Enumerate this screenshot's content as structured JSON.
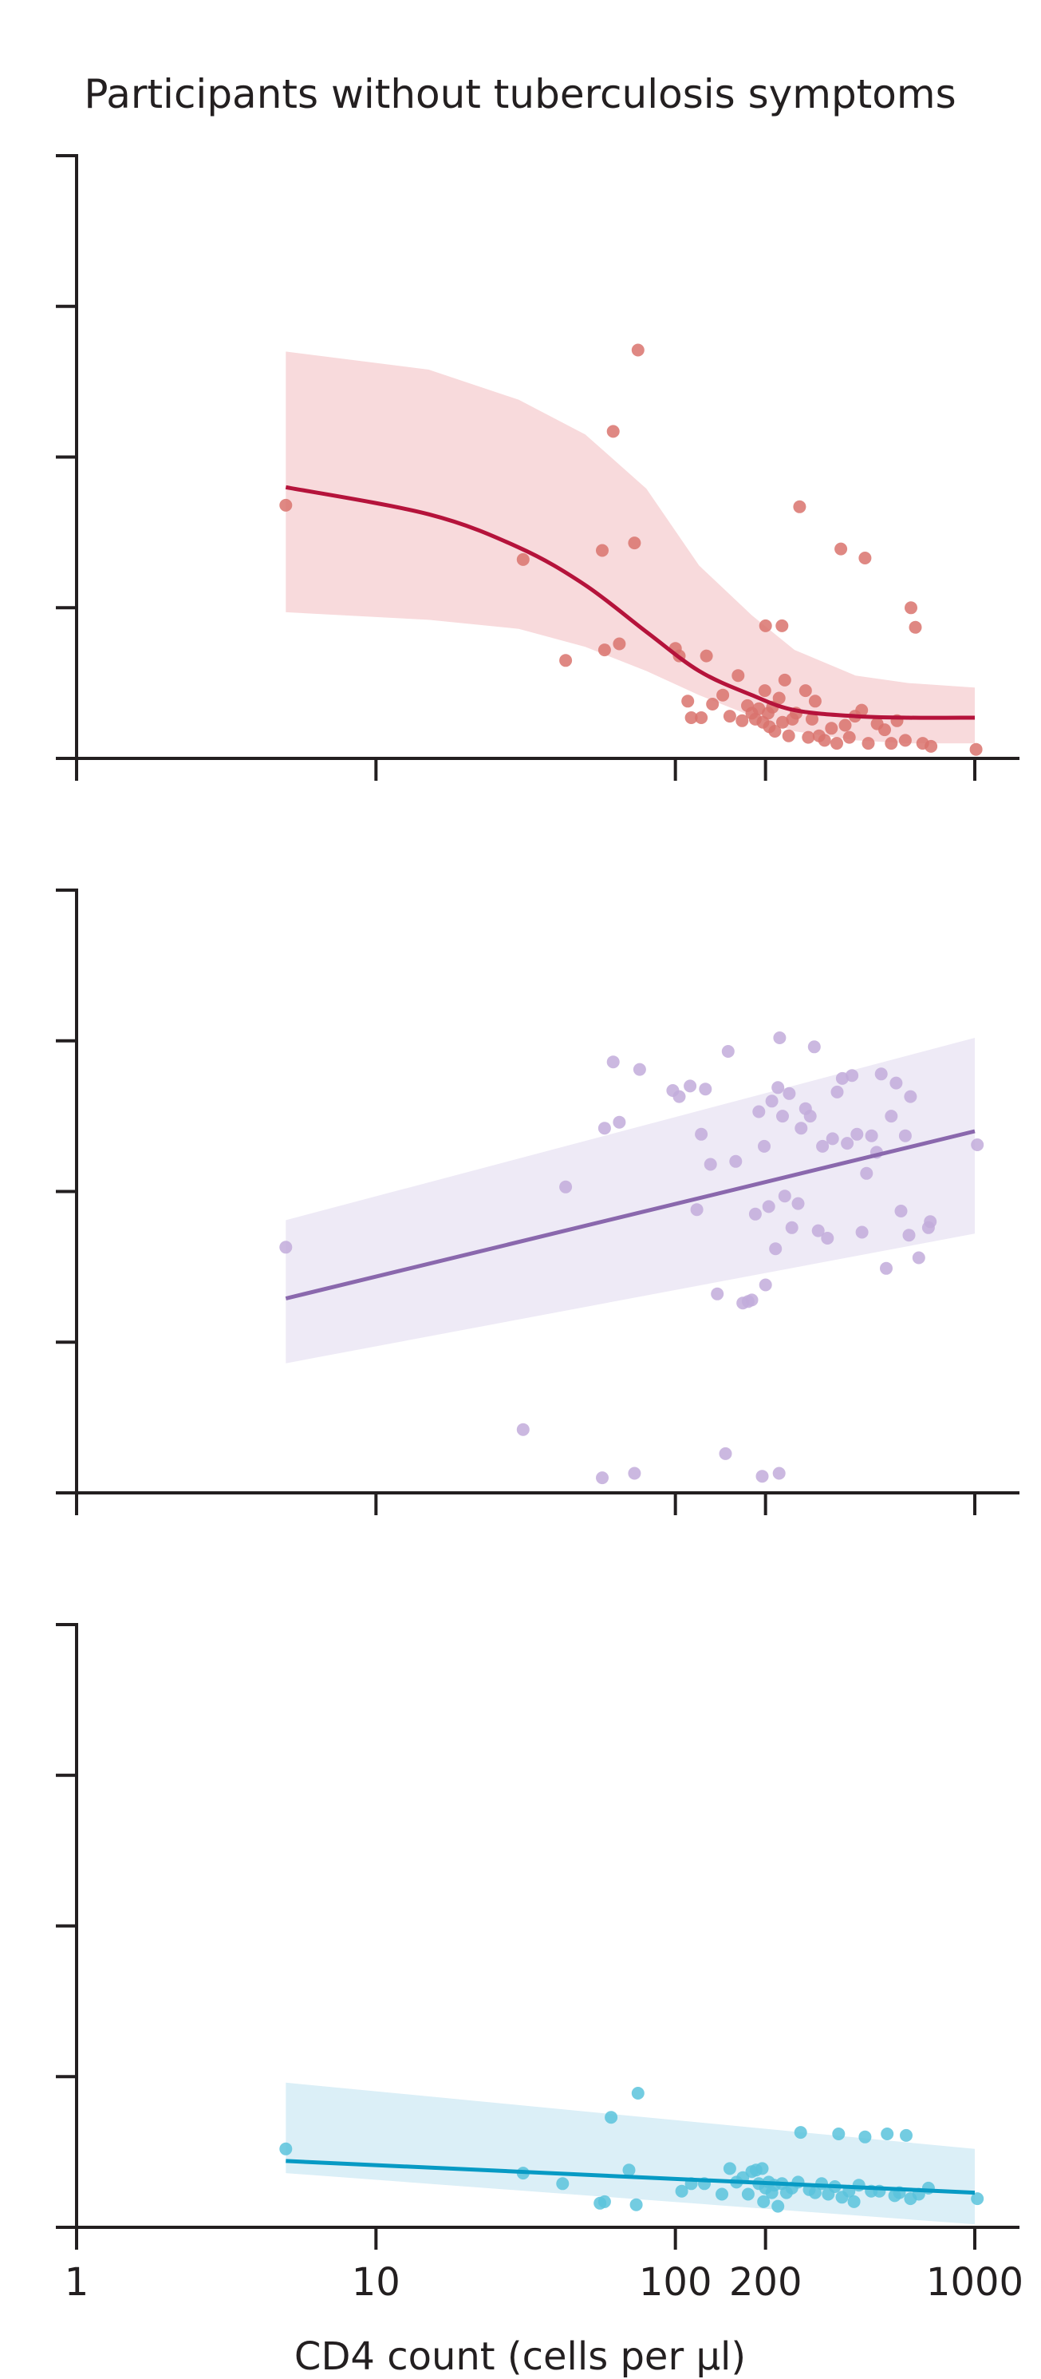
{
  "figure": {
    "title": "Participants without tuberculosis symptoms",
    "xlabel": "CD4 count (cells per µl)",
    "x_scale": "log",
    "x_ticks": [
      1,
      10,
      100,
      200,
      1000
    ],
    "x_tick_labels": [
      "1",
      "10",
      "100",
      "200",
      "1000"
    ]
  },
  "chart_data": [
    {
      "type": "scatter",
      "panel": "top",
      "x_scale": "log",
      "xlim": [
        1,
        1000
      ],
      "ylim": [
        0,
        4
      ],
      "y_ticks": [
        0,
        1,
        2,
        3,
        4
      ],
      "grid": false,
      "colors": {
        "points": "#d9736d",
        "line": "#b5133b",
        "band": "#f8dadc"
      },
      "points": [
        {
          "x": 5,
          "y": 1.68
        },
        {
          "x": 31,
          "y": 1.32
        },
        {
          "x": 43,
          "y": 0.65
        },
        {
          "x": 57,
          "y": 1.38
        },
        {
          "x": 62,
          "y": 2.17
        },
        {
          "x": 58,
          "y": 0.72
        },
        {
          "x": 65,
          "y": 0.76
        },
        {
          "x": 73,
          "y": 1.43
        },
        {
          "x": 75,
          "y": 2.71
        },
        {
          "x": 100,
          "y": 0.73
        },
        {
          "x": 103,
          "y": 0.68
        },
        {
          "x": 110,
          "y": 0.38
        },
        {
          "x": 113,
          "y": 0.27
        },
        {
          "x": 122,
          "y": 0.27
        },
        {
          "x": 127,
          "y": 0.68
        },
        {
          "x": 133,
          "y": 0.36
        },
        {
          "x": 144,
          "y": 0.42
        },
        {
          "x": 152,
          "y": 0.28
        },
        {
          "x": 162,
          "y": 0.55
        },
        {
          "x": 167,
          "y": 0.25
        },
        {
          "x": 174,
          "y": 0.35
        },
        {
          "x": 180,
          "y": 0.3
        },
        {
          "x": 185,
          "y": 0.26
        },
        {
          "x": 190,
          "y": 0.33
        },
        {
          "x": 196,
          "y": 0.24
        },
        {
          "x": 199,
          "y": 0.45
        },
        {
          "x": 200,
          "y": 0.88
        },
        {
          "x": 204,
          "y": 0.3
        },
        {
          "x": 206,
          "y": 0.21
        },
        {
          "x": 211,
          "y": 0.34
        },
        {
          "x": 215,
          "y": 0.18
        },
        {
          "x": 222,
          "y": 0.4
        },
        {
          "x": 227,
          "y": 0.88
        },
        {
          "x": 228,
          "y": 0.24
        },
        {
          "x": 232,
          "y": 0.52
        },
        {
          "x": 239,
          "y": 0.15
        },
        {
          "x": 246,
          "y": 0.26
        },
        {
          "x": 253,
          "y": 0.3
        },
        {
          "x": 260,
          "y": 1.67
        },
        {
          "x": 272,
          "y": 0.45
        },
        {
          "x": 278,
          "y": 0.14
        },
        {
          "x": 286,
          "y": 0.26
        },
        {
          "x": 293,
          "y": 0.38
        },
        {
          "x": 302,
          "y": 0.15
        },
        {
          "x": 315,
          "y": 0.12
        },
        {
          "x": 332,
          "y": 0.2
        },
        {
          "x": 346,
          "y": 0.1
        },
        {
          "x": 357,
          "y": 1.39
        },
        {
          "x": 369,
          "y": 0.22
        },
        {
          "x": 381,
          "y": 0.14
        },
        {
          "x": 398,
          "y": 0.28
        },
        {
          "x": 419,
          "y": 0.32
        },
        {
          "x": 430,
          "y": 1.33
        },
        {
          "x": 441,
          "y": 0.1
        },
        {
          "x": 472,
          "y": 0.23
        },
        {
          "x": 500,
          "y": 0.19
        },
        {
          "x": 526,
          "y": 0.1
        },
        {
          "x": 550,
          "y": 0.25
        },
        {
          "x": 586,
          "y": 0.12
        },
        {
          "x": 612,
          "y": 1.0
        },
        {
          "x": 633,
          "y": 0.87
        },
        {
          "x": 670,
          "y": 0.1
        },
        {
          "x": 714,
          "y": 0.08
        },
        {
          "x": 1010,
          "y": 0.06
        }
      ],
      "fit": {
        "x": [
          5,
          15,
          30,
          50,
          80,
          120,
          180,
          250,
          400,
          600,
          1000
        ],
        "y": [
          1.8,
          1.62,
          1.4,
          1.15,
          0.84,
          0.58,
          0.42,
          0.32,
          0.28,
          0.27,
          0.27
        ],
        "lower": [
          0.97,
          0.92,
          0.86,
          0.74,
          0.58,
          0.42,
          0.28,
          0.18,
          0.12,
          0.1,
          0.1
        ],
        "upper": [
          2.7,
          2.58,
          2.38,
          2.15,
          1.79,
          1.28,
          0.95,
          0.72,
          0.55,
          0.5,
          0.47
        ]
      }
    },
    {
      "type": "scatter",
      "panel": "middle",
      "x_scale": "log",
      "xlim": [
        1,
        1000
      ],
      "ylim": [
        0,
        4
      ],
      "y_ticks": [
        0,
        1,
        2,
        3,
        4
      ],
      "grid": false,
      "colors": {
        "points": "#c2acda",
        "line": "#8a68ad",
        "band": "#eeeaf6"
      },
      "points": [
        {
          "x": 5,
          "y": 1.63
        },
        {
          "x": 31,
          "y": 0.42
        },
        {
          "x": 43,
          "y": 2.03
        },
        {
          "x": 57,
          "y": 0.1
        },
        {
          "x": 58,
          "y": 2.42
        },
        {
          "x": 62,
          "y": 2.86
        },
        {
          "x": 65,
          "y": 2.46
        },
        {
          "x": 73,
          "y": 0.13
        },
        {
          "x": 76,
          "y": 2.81
        },
        {
          "x": 98,
          "y": 2.67
        },
        {
          "x": 103,
          "y": 2.63
        },
        {
          "x": 112,
          "y": 2.7
        },
        {
          "x": 118,
          "y": 1.88
        },
        {
          "x": 122,
          "y": 2.38
        },
        {
          "x": 126,
          "y": 2.68
        },
        {
          "x": 131,
          "y": 2.18
        },
        {
          "x": 138,
          "y": 1.32
        },
        {
          "x": 147,
          "y": 0.26
        },
        {
          "x": 150,
          "y": 2.93
        },
        {
          "x": 159,
          "y": 2.2
        },
        {
          "x": 168,
          "y": 1.26
        },
        {
          "x": 175,
          "y": 1.27
        },
        {
          "x": 180,
          "y": 1.28
        },
        {
          "x": 185,
          "y": 1.85
        },
        {
          "x": 190,
          "y": 2.53
        },
        {
          "x": 195,
          "y": 0.11
        },
        {
          "x": 198,
          "y": 2.3
        },
        {
          "x": 200,
          "y": 1.38
        },
        {
          "x": 205,
          "y": 1.9
        },
        {
          "x": 210,
          "y": 2.6
        },
        {
          "x": 216,
          "y": 1.62
        },
        {
          "x": 220,
          "y": 2.69
        },
        {
          "x": 222,
          "y": 0.13
        },
        {
          "x": 223,
          "y": 3.02
        },
        {
          "x": 228,
          "y": 2.5
        },
        {
          "x": 232,
          "y": 1.97
        },
        {
          "x": 240,
          "y": 2.65
        },
        {
          "x": 245,
          "y": 1.76
        },
        {
          "x": 257,
          "y": 1.92
        },
        {
          "x": 263,
          "y": 2.42
        },
        {
          "x": 272,
          "y": 2.55
        },
        {
          "x": 282,
          "y": 2.5
        },
        {
          "x": 291,
          "y": 2.96
        },
        {
          "x": 300,
          "y": 1.74
        },
        {
          "x": 310,
          "y": 2.3
        },
        {
          "x": 322,
          "y": 1.69
        },
        {
          "x": 335,
          "y": 2.35
        },
        {
          "x": 347,
          "y": 2.66
        },
        {
          "x": 361,
          "y": 2.75
        },
        {
          "x": 375,
          "y": 2.32
        },
        {
          "x": 389,
          "y": 2.77
        },
        {
          "x": 404,
          "y": 2.38
        },
        {
          "x": 420,
          "y": 1.73
        },
        {
          "x": 435,
          "y": 2.12
        },
        {
          "x": 452,
          "y": 2.37
        },
        {
          "x": 470,
          "y": 2.26
        },
        {
          "x": 487,
          "y": 2.78
        },
        {
          "x": 506,
          "y": 1.49
        },
        {
          "x": 526,
          "y": 2.5
        },
        {
          "x": 546,
          "y": 2.72
        },
        {
          "x": 567,
          "y": 1.87
        },
        {
          "x": 586,
          "y": 2.37
        },
        {
          "x": 603,
          "y": 1.71
        },
        {
          "x": 610,
          "y": 2.63
        },
        {
          "x": 650,
          "y": 1.56
        },
        {
          "x": 700,
          "y": 1.76
        },
        {
          "x": 710,
          "y": 1.8
        },
        {
          "x": 1020,
          "y": 2.31
        }
      ],
      "fit": {
        "x": [
          5,
          1000
        ],
        "y": [
          1.29,
          2.4
        ],
        "lower": [
          0.86,
          1.72
        ],
        "upper": [
          1.81,
          3.02
        ]
      }
    },
    {
      "type": "scatter",
      "panel": "bottom",
      "x_scale": "log",
      "xlim": [
        1,
        1000
      ],
      "ylim": [
        0,
        4
      ],
      "y_ticks": [
        0,
        1,
        2,
        3,
        4
      ],
      "grid": false,
      "colors": {
        "points": "#5bc3dc",
        "line": "#079ac4",
        "band": "#dbeff7"
      },
      "points": [
        {
          "x": 5,
          "y": 0.52
        },
        {
          "x": 31,
          "y": 0.36
        },
        {
          "x": 42,
          "y": 0.29
        },
        {
          "x": 56,
          "y": 0.16
        },
        {
          "x": 58,
          "y": 0.17
        },
        {
          "x": 61,
          "y": 0.73
        },
        {
          "x": 70,
          "y": 0.38
        },
        {
          "x": 74,
          "y": 0.15
        },
        {
          "x": 75,
          "y": 0.89
        },
        {
          "x": 105,
          "y": 0.24
        },
        {
          "x": 113,
          "y": 0.29
        },
        {
          "x": 125,
          "y": 0.29
        },
        {
          "x": 143,
          "y": 0.22
        },
        {
          "x": 152,
          "y": 0.39
        },
        {
          "x": 160,
          "y": 0.3
        },
        {
          "x": 168,
          "y": 0.33
        },
        {
          "x": 175,
          "y": 0.22
        },
        {
          "x": 180,
          "y": 0.37
        },
        {
          "x": 186,
          "y": 0.38
        },
        {
          "x": 190,
          "y": 0.29
        },
        {
          "x": 195,
          "y": 0.39
        },
        {
          "x": 197,
          "y": 0.17
        },
        {
          "x": 200,
          "y": 0.26
        },
        {
          "x": 205,
          "y": 0.3
        },
        {
          "x": 210,
          "y": 0.23
        },
        {
          "x": 214,
          "y": 0.28
        },
        {
          "x": 220,
          "y": 0.14
        },
        {
          "x": 227,
          "y": 0.29
        },
        {
          "x": 235,
          "y": 0.23
        },
        {
          "x": 245,
          "y": 0.26
        },
        {
          "x": 257,
          "y": 0.3
        },
        {
          "x": 262,
          "y": 0.63
        },
        {
          "x": 280,
          "y": 0.25
        },
        {
          "x": 293,
          "y": 0.23
        },
        {
          "x": 308,
          "y": 0.29
        },
        {
          "x": 324,
          "y": 0.22
        },
        {
          "x": 341,
          "y": 0.27
        },
        {
          "x": 351,
          "y": 0.62
        },
        {
          "x": 360,
          "y": 0.2
        },
        {
          "x": 380,
          "y": 0.24
        },
        {
          "x": 395,
          "y": 0.17
        },
        {
          "x": 410,
          "y": 0.28
        },
        {
          "x": 430,
          "y": 0.6
        },
        {
          "x": 451,
          "y": 0.24
        },
        {
          "x": 480,
          "y": 0.24
        },
        {
          "x": 510,
          "y": 0.62
        },
        {
          "x": 540,
          "y": 0.21
        },
        {
          "x": 560,
          "y": 0.23
        },
        {
          "x": 590,
          "y": 0.61
        },
        {
          "x": 610,
          "y": 0.19
        },
        {
          "x": 650,
          "y": 0.22
        },
        {
          "x": 700,
          "y": 0.26
        },
        {
          "x": 1020,
          "y": 0.19
        }
      ],
      "fit": {
        "x": [
          5,
          1000
        ],
        "y": [
          0.44,
          0.23
        ],
        "lower": [
          0.36,
          0.02
        ],
        "upper": [
          0.96,
          0.52
        ]
      }
    }
  ]
}
